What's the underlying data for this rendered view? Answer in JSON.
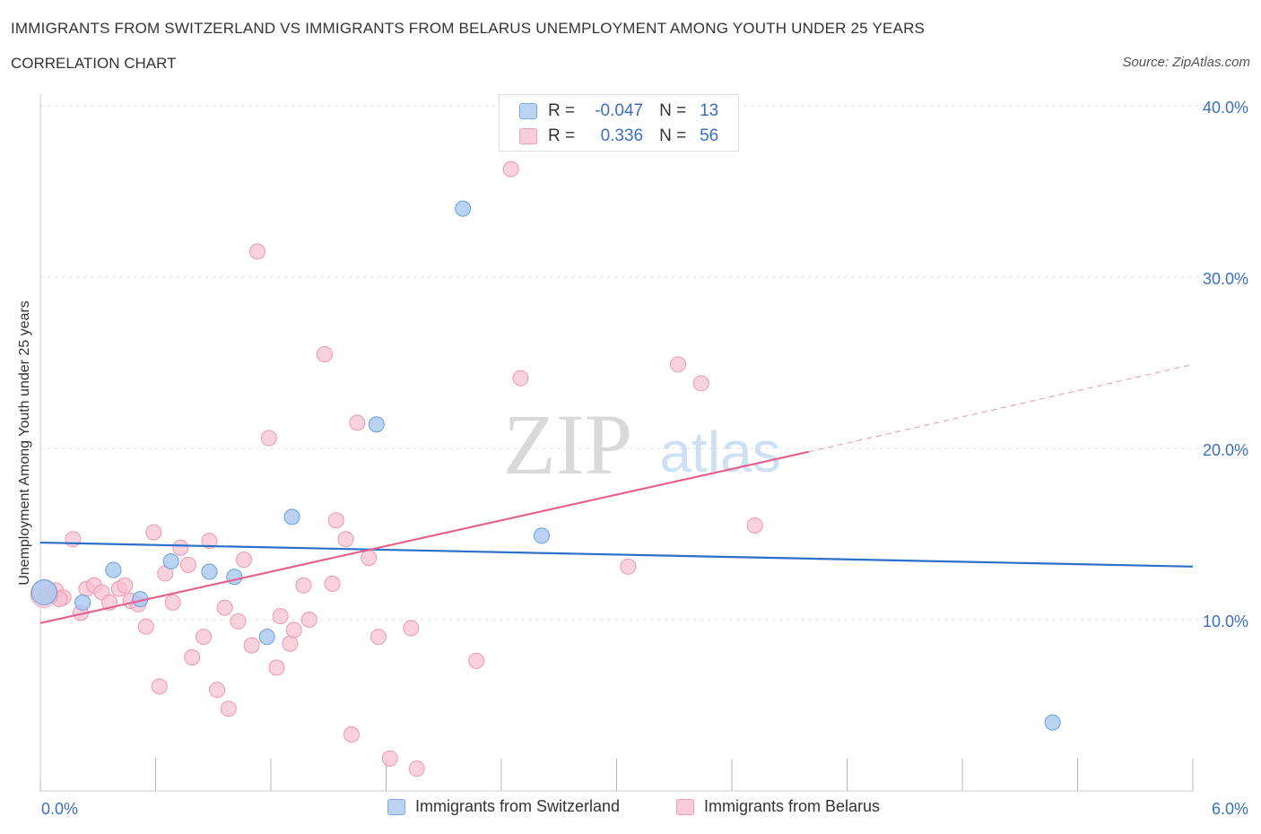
{
  "colors": {
    "switzerland_fill": "#aac8ef",
    "switzerland_stroke": "#6a9de0",
    "switzerland_line": "#2a6fc9",
    "belarus_fill": "#f6bfd0",
    "belarus_stroke": "#ec97b3",
    "belarus_line": "#e2638e",
    "axis_text": "#3a6fc4",
    "grid": "#e2e2e2"
  },
  "header": {
    "title": "IMMIGRANTS FROM SWITZERLAND VS IMMIGRANTS FROM BELARUS UNEMPLOYMENT AMONG YOUTH UNDER 25 YEARS",
    "subtitle": "CORRELATION CHART",
    "source": "Source: ZipAtlas.com"
  },
  "legend": {
    "row1": {
      "r_label": "R =",
      "r_value": "-0.047",
      "n_label": "N =",
      "n_value": "13"
    },
    "row2": {
      "r_label": "R =",
      "r_value": "0.336",
      "n_label": "N =",
      "n_value": "56"
    }
  },
  "watermark": {
    "part1": "ZIP",
    "part2": "atlas"
  },
  "chart_data": {
    "type": "scatter",
    "title": "IMMIGRANTS FROM SWITZERLAND VS IMMIGRANTS FROM BELARUS UNEMPLOYMENT AMONG YOUTH UNDER 25 YEARS",
    "subtitle": "CORRELATION CHART",
    "xlabel": "",
    "ylabel": "Unemployment Among Youth under 25 years",
    "xlim": [
      0,
      6
    ],
    "ylim": [
      0,
      40
    ],
    "x_tick_labels": [
      "0.0%",
      "6.0%"
    ],
    "y_ticks": [
      10,
      20,
      30,
      40
    ],
    "y_tick_labels": [
      "10.0%",
      "20.0%",
      "30.0%",
      "40.0%"
    ],
    "grid": true,
    "legend_position": "bottom",
    "series": [
      {
        "name": "Immigrants from Switzerland",
        "R": -0.047,
        "N": 13,
        "trend": {
          "x0": 0.0,
          "y0": 14.5,
          "x1": 6.0,
          "y1": 13.1
        },
        "points": [
          {
            "x": 0.02,
            "y": 11.6
          },
          {
            "x": 0.22,
            "y": 11.0
          },
          {
            "x": 0.38,
            "y": 12.9
          },
          {
            "x": 0.52,
            "y": 11.2
          },
          {
            "x": 0.68,
            "y": 13.4
          },
          {
            "x": 0.88,
            "y": 12.8
          },
          {
            "x": 1.01,
            "y": 12.5
          },
          {
            "x": 1.18,
            "y": 9.0
          },
          {
            "x": 1.31,
            "y": 16.0
          },
          {
            "x": 1.75,
            "y": 21.4
          },
          {
            "x": 2.2,
            "y": 34.0
          },
          {
            "x": 2.61,
            "y": 14.9
          },
          {
            "x": 5.27,
            "y": 4.0
          }
        ]
      },
      {
        "name": "Immigrants from Belarus",
        "R": 0.336,
        "N": 56,
        "trend": {
          "x0": 0.0,
          "y0": 9.8,
          "x1": 4.0,
          "y1": 19.8,
          "dashed_to_x": 6.0,
          "dashed_to_y": 24.9
        },
        "points": [
          {
            "x": 0.03,
            "y": 11.4
          },
          {
            "x": 0.08,
            "y": 11.7
          },
          {
            "x": 0.12,
            "y": 11.3
          },
          {
            "x": 0.17,
            "y": 14.7
          },
          {
            "x": 0.21,
            "y": 10.4
          },
          {
            "x": 0.24,
            "y": 11.8
          },
          {
            "x": 0.28,
            "y": 12.0
          },
          {
            "x": 0.32,
            "y": 11.6
          },
          {
            "x": 0.36,
            "y": 11.0
          },
          {
            "x": 0.41,
            "y": 11.8
          },
          {
            "x": 0.44,
            "y": 12.0
          },
          {
            "x": 0.47,
            "y": 11.1
          },
          {
            "x": 0.51,
            "y": 10.9
          },
          {
            "x": 0.55,
            "y": 9.6
          },
          {
            "x": 0.59,
            "y": 15.1
          },
          {
            "x": 0.62,
            "y": 6.1
          },
          {
            "x": 0.65,
            "y": 12.7
          },
          {
            "x": 0.69,
            "y": 11.0
          },
          {
            "x": 0.73,
            "y": 14.2
          },
          {
            "x": 0.77,
            "y": 13.2
          },
          {
            "x": 0.79,
            "y": 7.8
          },
          {
            "x": 0.85,
            "y": 9.0
          },
          {
            "x": 0.88,
            "y": 14.6
          },
          {
            "x": 0.92,
            "y": 5.9
          },
          {
            "x": 0.96,
            "y": 10.7
          },
          {
            "x": 0.98,
            "y": 4.8
          },
          {
            "x": 1.03,
            "y": 9.9
          },
          {
            "x": 1.06,
            "y": 13.5
          },
          {
            "x": 1.1,
            "y": 8.5
          },
          {
            "x": 1.13,
            "y": 31.5
          },
          {
            "x": 1.19,
            "y": 20.6
          },
          {
            "x": 1.23,
            "y": 7.2
          },
          {
            "x": 1.25,
            "y": 10.2
          },
          {
            "x": 1.3,
            "y": 8.6
          },
          {
            "x": 1.32,
            "y": 9.4
          },
          {
            "x": 1.37,
            "y": 12.0
          },
          {
            "x": 1.4,
            "y": 10.0
          },
          {
            "x": 1.48,
            "y": 25.5
          },
          {
            "x": 1.52,
            "y": 12.1
          },
          {
            "x": 1.54,
            "y": 15.8
          },
          {
            "x": 1.59,
            "y": 14.7
          },
          {
            "x": 1.62,
            "y": 3.3
          },
          {
            "x": 1.65,
            "y": 21.5
          },
          {
            "x": 1.71,
            "y": 13.6
          },
          {
            "x": 1.76,
            "y": 9.0
          },
          {
            "x": 1.82,
            "y": 1.9
          },
          {
            "x": 1.93,
            "y": 9.5
          },
          {
            "x": 1.96,
            "y": 1.3
          },
          {
            "x": 2.27,
            "y": 7.6
          },
          {
            "x": 2.45,
            "y": 36.3
          },
          {
            "x": 2.5,
            "y": 24.1
          },
          {
            "x": 3.06,
            "y": 13.1
          },
          {
            "x": 3.32,
            "y": 24.9
          },
          {
            "x": 3.44,
            "y": 23.8
          },
          {
            "x": 3.72,
            "y": 15.5
          },
          {
            "x": 0.1,
            "y": 11.2
          }
        ]
      }
    ]
  }
}
